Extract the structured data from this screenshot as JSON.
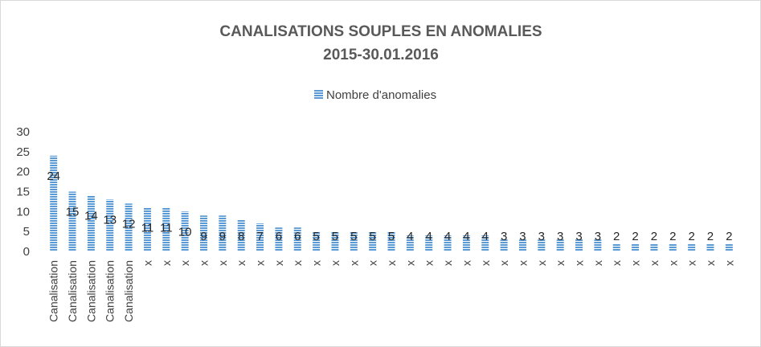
{
  "chart_data": {
    "type": "bar",
    "title_line1": "CANALISATIONS SOUPLES EN ANOMALIES",
    "title_line2": "2015-30.01.2016",
    "legend_label": "Nombre d'anomalies",
    "legend_position": "top",
    "series": [
      {
        "name": "Nombre d'anomalies",
        "values": [
          24,
          15,
          14,
          13,
          12,
          11,
          11,
          10,
          9,
          9,
          8,
          7,
          6,
          6,
          5,
          5,
          5,
          5,
          5,
          4,
          4,
          4,
          4,
          4,
          3,
          3,
          3,
          3,
          3,
          3,
          2,
          2,
          2,
          2,
          2,
          2,
          2
        ]
      }
    ],
    "categories": [
      "Canalisation",
      "Canalisation",
      "Canalisation",
      "Canalisation",
      "Canalisation",
      "x",
      "x",
      "x",
      "x",
      "x",
      "x",
      "x",
      "x",
      "x",
      "x",
      "x",
      "x",
      "x",
      "x",
      "x",
      "x",
      "x",
      "x",
      "x",
      "x",
      "x",
      "x",
      "x",
      "x",
      "x",
      "x",
      "x",
      "x",
      "x",
      "x",
      "x",
      "x"
    ],
    "ylim": [
      0,
      30
    ],
    "yticks": [
      0,
      5,
      10,
      15,
      20,
      25,
      30
    ],
    "grid": false,
    "bar_color": "#5b9bd5"
  }
}
